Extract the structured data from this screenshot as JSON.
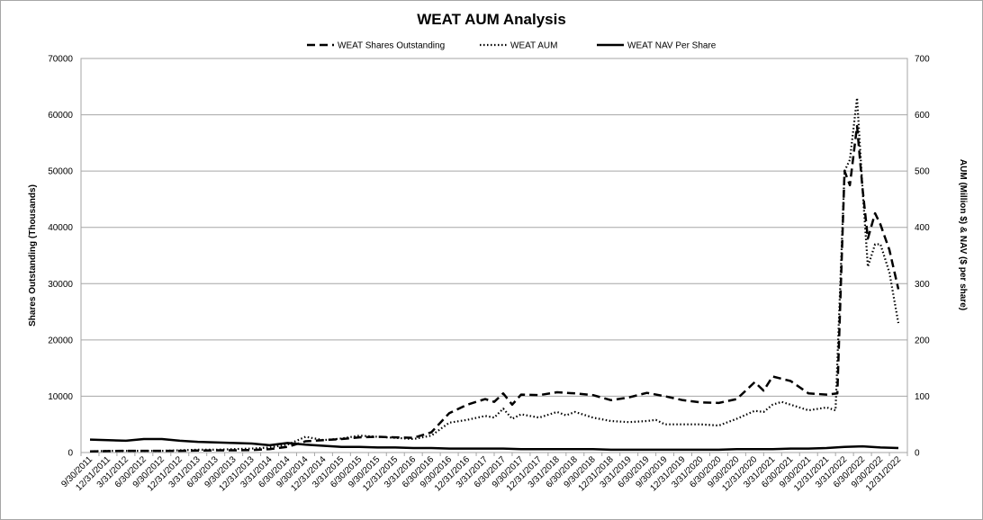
{
  "chart_data": {
    "type": "line",
    "title": "WEAT AUM Analysis",
    "ylabel_left": "Shares Outstanding (Thousands)",
    "ylabel_right": "AUM (Million $) & NAV ($ per share)",
    "ylim_left": [
      0,
      70000
    ],
    "ylim_right": [
      0,
      700
    ],
    "yticks_left": [
      "0",
      "10000",
      "20000",
      "30000",
      "40000",
      "50000",
      "60000",
      "70000"
    ],
    "yticks_right": [
      "0",
      "100",
      "200",
      "300",
      "400",
      "500",
      "600",
      "700"
    ],
    "grid": true,
    "legend_position": "top",
    "x_labels": [
      "9/30/2011",
      "12/31/2011",
      "3/31/2012",
      "6/30/2012",
      "9/30/2012",
      "12/31/2012",
      "3/31/2013",
      "6/30/2013",
      "9/30/2013",
      "12/31/2013",
      "3/31/2014",
      "6/30/2014",
      "9/30/2014",
      "12/31/2014",
      "3/31/2015",
      "6/30/2015",
      "9/30/2015",
      "12/31/2015",
      "3/31/2016",
      "6/30/2016",
      "9/30/2016",
      "12/31/2016",
      "3/31/2017",
      "6/30/2017",
      "9/30/2017",
      "12/31/2017",
      "3/31/2018",
      "6/30/2018",
      "9/30/2018",
      "12/31/2018",
      "3/31/2019",
      "6/30/2019",
      "9/30/2019",
      "12/31/2019",
      "3/31/2020",
      "6/30/2020",
      "9/30/2020",
      "12/31/2020",
      "3/31/2021",
      "6/30/2021",
      "9/30/2021",
      "12/31/2021",
      "3/31/2022",
      "6/30/2022",
      "9/30/2022",
      "12/31/2022"
    ],
    "series": [
      {
        "name": "WEAT Shares Outstanding",
        "axis": "left",
        "style": "dashed",
        "points": [
          [
            0,
            200
          ],
          [
            1,
            250
          ],
          [
            2,
            300
          ],
          [
            3,
            300
          ],
          [
            4,
            300
          ],
          [
            5,
            300
          ],
          [
            6,
            350
          ],
          [
            7,
            400
          ],
          [
            8,
            400
          ],
          [
            9,
            450
          ],
          [
            10,
            600
          ],
          [
            11,
            1000
          ],
          [
            12,
            2000
          ],
          [
            13,
            2200
          ],
          [
            14,
            2400
          ],
          [
            15,
            2700
          ],
          [
            16,
            2800
          ],
          [
            17,
            2700
          ],
          [
            18,
            2600
          ],
          [
            19,
            3600
          ],
          [
            20,
            7000
          ],
          [
            21,
            8500
          ],
          [
            22,
            9500
          ],
          [
            22.5,
            9000
          ],
          [
            23,
            10500
          ],
          [
            23.5,
            8500
          ],
          [
            24,
            10300
          ],
          [
            25,
            10200
          ],
          [
            26,
            10700
          ],
          [
            27,
            10500
          ],
          [
            28,
            10200
          ],
          [
            29,
            9300
          ],
          [
            30,
            9800
          ],
          [
            31,
            10600
          ],
          [
            32,
            10000
          ],
          [
            33,
            9300
          ],
          [
            34,
            8900
          ],
          [
            35,
            8800
          ],
          [
            36,
            9500
          ],
          [
            37,
            12500
          ],
          [
            37.5,
            11000
          ],
          [
            38,
            13500
          ],
          [
            39,
            12700
          ],
          [
            40,
            10500
          ],
          [
            41,
            10300
          ],
          [
            41.6,
            10500
          ],
          [
            42,
            50000
          ],
          [
            42.3,
            47500
          ],
          [
            42.7,
            58000
          ],
          [
            43,
            47000
          ],
          [
            43.3,
            38000
          ],
          [
            43.7,
            42500
          ],
          [
            44,
            40500
          ],
          [
            44.5,
            36000
          ],
          [
            45,
            29000
          ]
        ]
      },
      {
        "name": "WEAT AUM",
        "axis": "right",
        "style": "dotted",
        "points": [
          [
            0,
            2
          ],
          [
            1,
            3
          ],
          [
            2,
            3
          ],
          [
            3,
            3
          ],
          [
            4,
            3
          ],
          [
            5,
            4
          ],
          [
            6,
            5
          ],
          [
            7,
            5
          ],
          [
            8,
            6
          ],
          [
            9,
            7
          ],
          [
            10,
            9
          ],
          [
            11,
            14
          ],
          [
            12,
            28
          ],
          [
            13,
            22
          ],
          [
            14,
            25
          ],
          [
            15,
            30
          ],
          [
            16,
            28
          ],
          [
            17,
            26
          ],
          [
            18,
            24
          ],
          [
            19,
            30
          ],
          [
            20,
            53
          ],
          [
            21,
            58
          ],
          [
            22,
            65
          ],
          [
            22.5,
            62
          ],
          [
            23,
            78
          ],
          [
            23.5,
            60
          ],
          [
            24,
            68
          ],
          [
            25,
            62
          ],
          [
            26,
            72
          ],
          [
            26.5,
            66
          ],
          [
            27,
            72
          ],
          [
            28,
            62
          ],
          [
            29,
            56
          ],
          [
            30,
            54
          ],
          [
            31,
            56
          ],
          [
            31.5,
            58
          ],
          [
            32,
            50
          ],
          [
            33,
            50
          ],
          [
            34,
            50
          ],
          [
            35,
            48
          ],
          [
            36,
            60
          ],
          [
            37,
            74
          ],
          [
            37.5,
            72
          ],
          [
            38,
            85
          ],
          [
            38.5,
            90
          ],
          [
            39,
            85
          ],
          [
            40,
            75
          ],
          [
            41,
            80
          ],
          [
            41.5,
            75
          ],
          [
            42,
            500
          ],
          [
            42.3,
            520
          ],
          [
            42.7,
            630
          ],
          [
            43,
            470
          ],
          [
            43.3,
            330
          ],
          [
            43.7,
            370
          ],
          [
            44,
            370
          ],
          [
            44.5,
            320
          ],
          [
            45,
            230
          ]
        ]
      },
      {
        "name": "WEAT NAV Per Share",
        "axis": "right",
        "style": "solid",
        "points": [
          [
            0,
            23
          ],
          [
            1,
            22
          ],
          [
            2,
            21
          ],
          [
            3,
            24
          ],
          [
            4,
            24
          ],
          [
            5,
            21
          ],
          [
            6,
            19
          ],
          [
            7,
            18
          ],
          [
            8,
            17
          ],
          [
            9,
            16
          ],
          [
            10,
            13
          ],
          [
            11,
            17
          ],
          [
            12,
            14
          ],
          [
            13,
            12
          ],
          [
            14,
            10
          ],
          [
            15,
            10
          ],
          [
            16,
            9
          ],
          [
            17,
            9
          ],
          [
            18,
            8
          ],
          [
            19,
            8
          ],
          [
            20,
            7
          ],
          [
            21,
            7
          ],
          [
            22,
            7
          ],
          [
            23,
            7
          ],
          [
            24,
            6
          ],
          [
            25,
            6
          ],
          [
            26,
            6
          ],
          [
            27,
            6
          ],
          [
            28,
            6
          ],
          [
            29,
            5
          ],
          [
            30,
            5
          ],
          [
            31,
            5
          ],
          [
            32,
            5
          ],
          [
            33,
            5
          ],
          [
            34,
            5
          ],
          [
            35,
            5
          ],
          [
            36,
            6
          ],
          [
            37,
            6
          ],
          [
            38,
            6
          ],
          [
            39,
            7
          ],
          [
            40,
            7
          ],
          [
            41,
            8
          ],
          [
            42,
            10
          ],
          [
            43,
            11
          ],
          [
            44,
            9
          ],
          [
            45,
            8
          ]
        ]
      }
    ]
  }
}
